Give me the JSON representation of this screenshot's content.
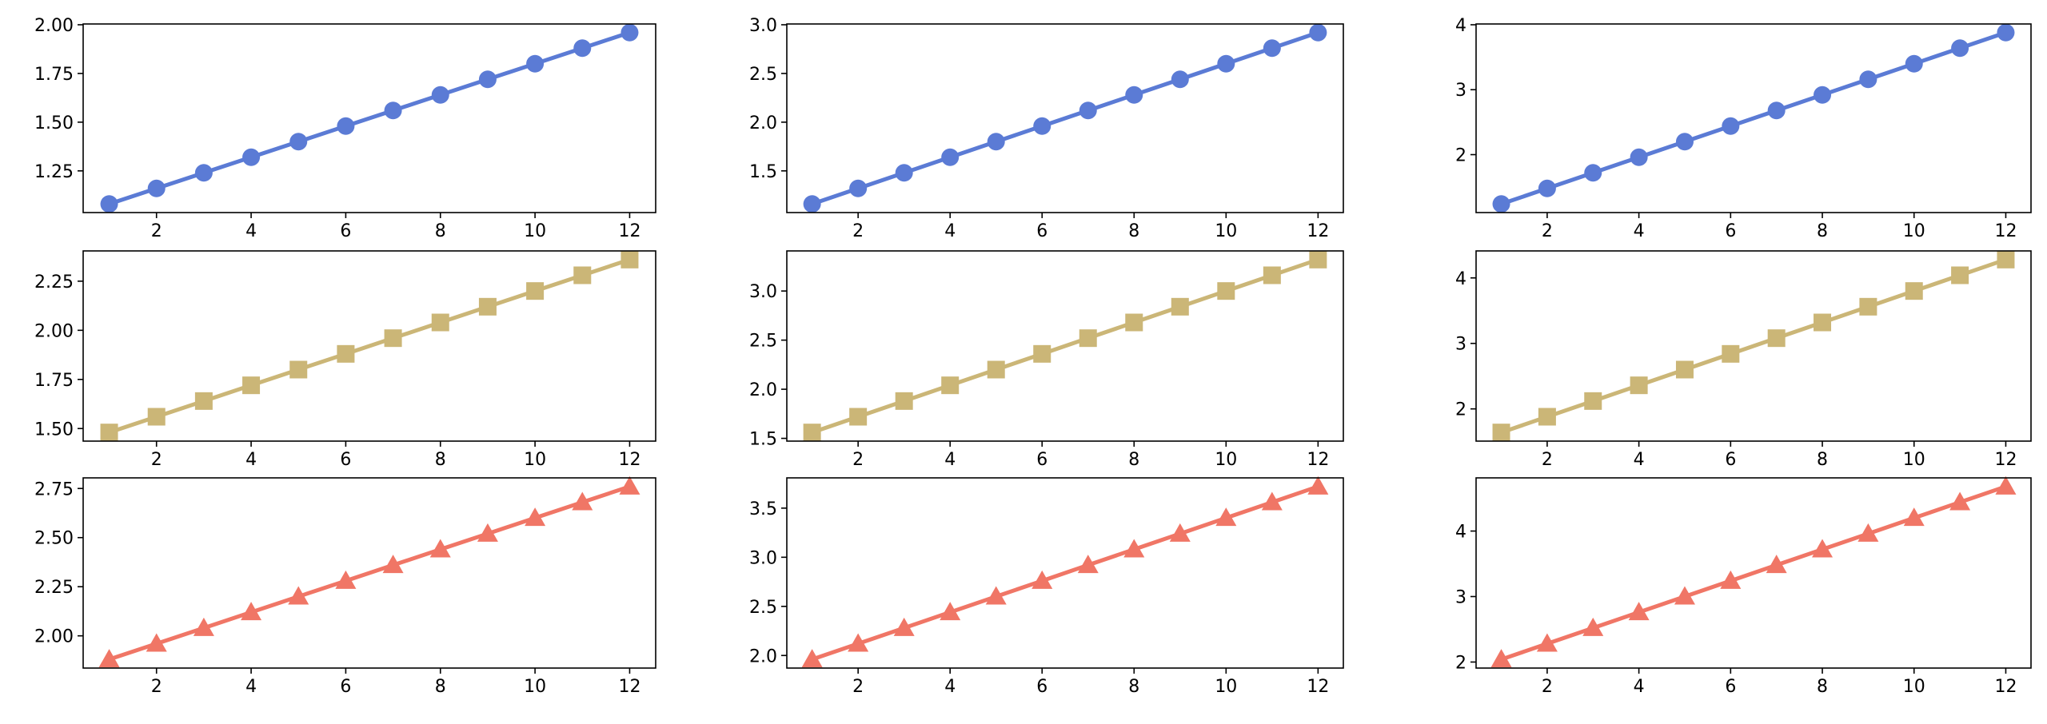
{
  "chart_data": [
    {
      "type": "line",
      "marker": "circle",
      "color": "#5b7bd5",
      "x": [
        1,
        2,
        3,
        4,
        5,
        6,
        7,
        8,
        9,
        10,
        11,
        12
      ],
      "y": [
        1.08,
        1.16,
        1.24,
        1.32,
        1.4,
        1.48,
        1.56,
        1.64,
        1.72,
        1.8,
        1.88,
        1.96
      ],
      "xticks": [
        2,
        4,
        6,
        8,
        10,
        12
      ],
      "yticks": [
        "1.25",
        "1.50",
        "1.75",
        "2.00"
      ],
      "xlim": [
        0.45,
        12.55
      ],
      "ylim": [
        1.036,
        2.004
      ]
    },
    {
      "type": "line",
      "marker": "circle",
      "color": "#5b7bd5",
      "x": [
        1,
        2,
        3,
        4,
        5,
        6,
        7,
        8,
        9,
        10,
        11,
        12
      ],
      "y": [
        1.16,
        1.32,
        1.48,
        1.64,
        1.8,
        1.96,
        2.12,
        2.28,
        2.44,
        2.6,
        2.76,
        2.92
      ],
      "xticks": [
        2,
        4,
        6,
        8,
        10,
        12
      ],
      "yticks": [
        "1.5",
        "2.0",
        "2.5",
        "3.0"
      ],
      "xlim": [
        0.45,
        12.55
      ],
      "ylim": [
        1.072,
        3.008
      ]
    },
    {
      "type": "line",
      "marker": "circle",
      "color": "#5b7bd5",
      "x": [
        1,
        2,
        3,
        4,
        5,
        6,
        7,
        8,
        9,
        10,
        11,
        12
      ],
      "y": [
        1.24,
        1.48,
        1.72,
        1.96,
        2.2,
        2.44,
        2.68,
        2.92,
        3.16,
        3.4,
        3.64,
        3.88
      ],
      "xticks": [
        2,
        4,
        6,
        8,
        10,
        12
      ],
      "yticks": [
        "2",
        "3",
        "4"
      ],
      "xlim": [
        0.45,
        12.55
      ],
      "ylim": [
        1.108,
        4.012
      ]
    },
    {
      "type": "line",
      "marker": "square",
      "color": "#cbb677",
      "x": [
        1,
        2,
        3,
        4,
        5,
        6,
        7,
        8,
        9,
        10,
        11,
        12
      ],
      "y": [
        1.48,
        1.56,
        1.64,
        1.72,
        1.8,
        1.88,
        1.96,
        2.04,
        2.12,
        2.2,
        2.28,
        2.36
      ],
      "xticks": [
        2,
        4,
        6,
        8,
        10,
        12
      ],
      "yticks": [
        "1.50",
        "1.75",
        "2.00",
        "2.25"
      ],
      "xlim": [
        0.45,
        12.55
      ],
      "ylim": [
        1.436,
        2.404
      ]
    },
    {
      "type": "line",
      "marker": "square",
      "color": "#cbb677",
      "x": [
        1,
        2,
        3,
        4,
        5,
        6,
        7,
        8,
        9,
        10,
        11,
        12
      ],
      "y": [
        1.56,
        1.72,
        1.88,
        2.04,
        2.2,
        2.36,
        2.52,
        2.68,
        2.84,
        3.0,
        3.16,
        3.32
      ],
      "xticks": [
        2,
        4,
        6,
        8,
        10,
        12
      ],
      "yticks": [
        "1.5",
        "2.0",
        "2.5",
        "3.0"
      ],
      "xlim": [
        0.45,
        12.55
      ],
      "ylim": [
        1.472,
        3.408
      ]
    },
    {
      "type": "line",
      "marker": "square",
      "color": "#cbb677",
      "x": [
        1,
        2,
        3,
        4,
        5,
        6,
        7,
        8,
        9,
        10,
        11,
        12
      ],
      "y": [
        1.64,
        1.88,
        2.12,
        2.36,
        2.6,
        2.84,
        3.08,
        3.32,
        3.56,
        3.8,
        4.04,
        4.28
      ],
      "xticks": [
        2,
        4,
        6,
        8,
        10,
        12
      ],
      "yticks": [
        "2",
        "3",
        "4"
      ],
      "xlim": [
        0.45,
        12.55
      ],
      "ylim": [
        1.508,
        4.412
      ]
    },
    {
      "type": "line",
      "marker": "triangle",
      "color": "#f07666",
      "x": [
        1,
        2,
        3,
        4,
        5,
        6,
        7,
        8,
        9,
        10,
        11,
        12
      ],
      "y": [
        1.88,
        1.96,
        2.04,
        2.12,
        2.2,
        2.28,
        2.36,
        2.44,
        2.52,
        2.6,
        2.68,
        2.76
      ],
      "xticks": [
        2,
        4,
        6,
        8,
        10,
        12
      ],
      "yticks": [
        "2.00",
        "2.25",
        "2.50",
        "2.75"
      ],
      "xlim": [
        0.45,
        12.55
      ],
      "ylim": [
        1.836,
        2.804
      ]
    },
    {
      "type": "line",
      "marker": "triangle",
      "color": "#f07666",
      "x": [
        1,
        2,
        3,
        4,
        5,
        6,
        7,
        8,
        9,
        10,
        11,
        12
      ],
      "y": [
        1.96,
        2.12,
        2.28,
        2.44,
        2.6,
        2.76,
        2.92,
        3.08,
        3.24,
        3.4,
        3.56,
        3.72
      ],
      "xticks": [
        2,
        4,
        6,
        8,
        10,
        12
      ],
      "yticks": [
        "2.0",
        "2.5",
        "3.0",
        "3.5"
      ],
      "xlim": [
        0.45,
        12.55
      ],
      "ylim": [
        1.872,
        3.808
      ]
    },
    {
      "type": "line",
      "marker": "triangle",
      "color": "#f07666",
      "x": [
        1,
        2,
        3,
        4,
        5,
        6,
        7,
        8,
        9,
        10,
        11,
        12
      ],
      "y": [
        2.04,
        2.28,
        2.52,
        2.76,
        3.0,
        3.24,
        3.48,
        3.72,
        3.96,
        4.2,
        4.44,
        4.68
      ],
      "xticks": [
        2,
        4,
        6,
        8,
        10,
        12
      ],
      "yticks": [
        "2",
        "3",
        "4"
      ],
      "xlim": [
        0.45,
        12.55
      ],
      "ylim": [
        1.908,
        4.812
      ]
    }
  ]
}
